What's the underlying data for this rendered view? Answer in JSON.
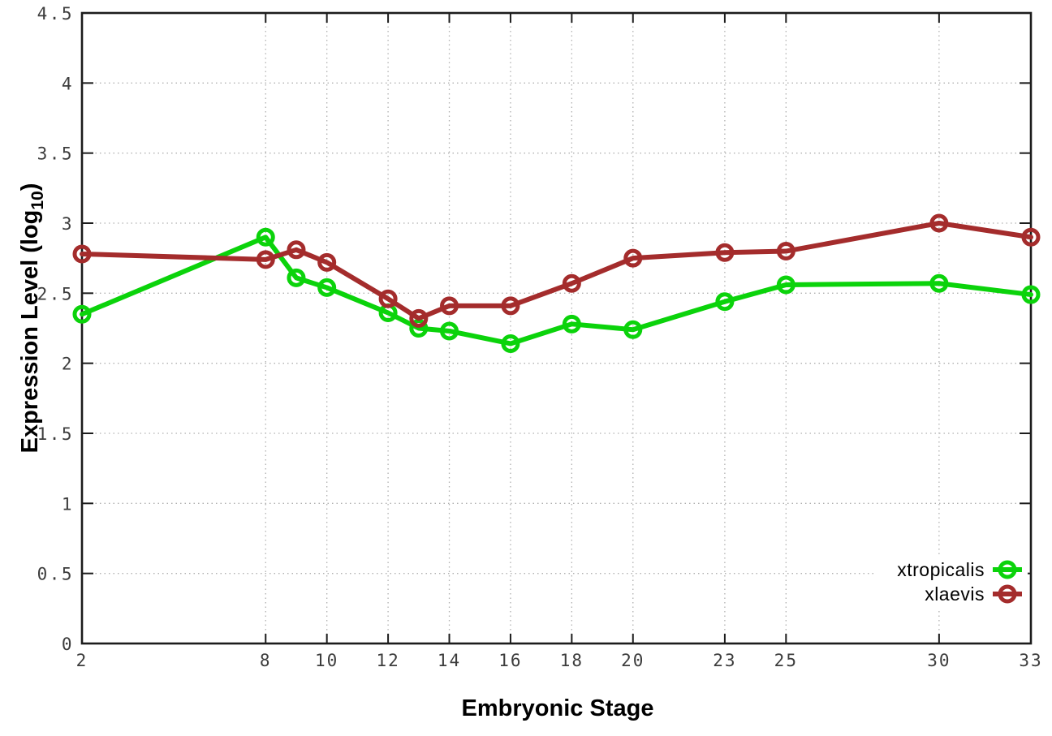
{
  "chart_data": {
    "type": "line",
    "title": "",
    "xlabel": "Embryonic Stage",
    "ylabel": "Expression Level (log10)",
    "ylabel_parts": {
      "pre": "Expression Level (log",
      "sub": "10",
      "post": ")"
    },
    "x": [
      2,
      8,
      9,
      10,
      12,
      13,
      14,
      16,
      18,
      20,
      23,
      25,
      30,
      33
    ],
    "x_tick_values": [
      2,
      8,
      10,
      12,
      14,
      16,
      18,
      20,
      23,
      25,
      30,
      33
    ],
    "x_tick_labels": [
      "2",
      "8",
      "10",
      "12",
      "14",
      "16",
      "18",
      "20",
      "23",
      "25",
      "30",
      "33"
    ],
    "xlim": [
      2,
      33
    ],
    "y_tick_values": [
      0,
      0.5,
      1,
      1.5,
      2,
      2.5,
      3,
      3.5,
      4,
      4.5
    ],
    "y_tick_labels": [
      "0",
      "0.5",
      "1",
      "1.5",
      "2",
      "2.5",
      "3",
      "3.5",
      "4",
      "4.5"
    ],
    "ylim": [
      0,
      4.5
    ],
    "grid": true,
    "legend_position": "inside-bottom-right",
    "series": [
      {
        "name": "xtropicalis",
        "color": "#0bd30b",
        "values": [
          2.35,
          2.9,
          2.61,
          2.54,
          2.36,
          2.25,
          2.23,
          2.14,
          2.28,
          2.24,
          2.44,
          2.56,
          2.57,
          2.49
        ]
      },
      {
        "name": "xlaevis",
        "color": "#a42c2c",
        "values": [
          2.78,
          2.74,
          2.81,
          2.72,
          2.46,
          2.32,
          2.41,
          2.41,
          2.57,
          2.75,
          2.79,
          2.8,
          3.0,
          2.9
        ]
      }
    ]
  },
  "colors": {
    "background": "#ffffff",
    "border": "#1c1c1c",
    "grid": "#b0b0b0",
    "tick_text": "#3c3c3c",
    "title_text": "#000000"
  }
}
